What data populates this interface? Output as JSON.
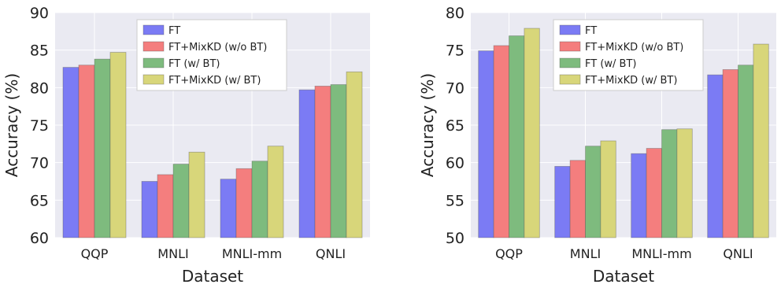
{
  "chart_data": [
    {
      "type": "bar",
      "categories": [
        "QQP",
        "MNLI",
        "MNLI-mm",
        "QNLI"
      ],
      "series": [
        {
          "name": "FT",
          "values": [
            82.7,
            67.5,
            67.8,
            79.7
          ],
          "color": "#7b7bf4"
        },
        {
          "name": "FT+MixKD (w/o BT)",
          "values": [
            83.0,
            68.4,
            69.2,
            80.2
          ],
          "color": "#f47e7e"
        },
        {
          "name": "FT (w/ BT)",
          "values": [
            83.8,
            69.8,
            70.2,
            80.4
          ],
          "color": "#7ebb7e"
        },
        {
          "name": "FT+MixKD (w/ BT)",
          "values": [
            84.7,
            71.4,
            72.2,
            82.1
          ],
          "color": "#d8d67a"
        }
      ],
      "xlabel": "Dataset",
      "ylabel": "Accuracy (%)",
      "ylim": [
        60,
        90
      ],
      "yticks": [
        "60",
        "65",
        "70",
        "75",
        "80",
        "85",
        "90"
      ],
      "grid": true,
      "legend_position": "top-right",
      "background": "#eaeaf2"
    },
    {
      "type": "bar",
      "categories": [
        "QQP",
        "MNLI",
        "MNLI-mm",
        "QNLI"
      ],
      "series": [
        {
          "name": "FT",
          "values": [
            74.9,
            59.5,
            61.2,
            71.7
          ],
          "color": "#7b7bf4"
        },
        {
          "name": "FT+MixKD (w/o BT)",
          "values": [
            75.6,
            60.3,
            61.9,
            72.4
          ],
          "color": "#f47e7e"
        },
        {
          "name": "FT (w/ BT)",
          "values": [
            76.9,
            62.2,
            64.4,
            73.0
          ],
          "color": "#7ebb7e"
        },
        {
          "name": "FT+MixKD (w/ BT)",
          "values": [
            77.9,
            62.9,
            64.5,
            75.8
          ],
          "color": "#d8d67a"
        }
      ],
      "xlabel": "Dataset",
      "ylabel": "Accuracy (%)",
      "ylim": [
        50,
        80
      ],
      "yticks": [
        "50",
        "55",
        "60",
        "65",
        "70",
        "75",
        "80"
      ],
      "grid": true,
      "legend_position": "top-right",
      "background": "#eaeaf2"
    }
  ]
}
